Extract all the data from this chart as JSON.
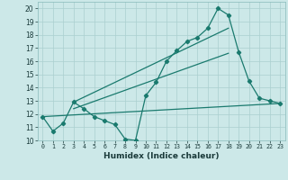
{
  "xlabel": "Humidex (Indice chaleur)",
  "ylabel": "",
  "bg_color": "#cce8e8",
  "grid_color": "#aacfcf",
  "line_color": "#1a7a6e",
  "xlim": [
    -0.5,
    23.5
  ],
  "ylim": [
    10,
    20.5
  ],
  "yticks": [
    10,
    11,
    12,
    13,
    14,
    15,
    16,
    17,
    18,
    19,
    20
  ],
  "xticks": [
    0,
    1,
    2,
    3,
    4,
    5,
    6,
    7,
    8,
    9,
    10,
    11,
    12,
    13,
    14,
    15,
    16,
    17,
    18,
    19,
    20,
    21,
    22,
    23
  ],
  "xtick_labels": [
    "0",
    "1",
    "2",
    "3",
    "4",
    "5",
    "6",
    "7",
    "8",
    "9",
    "10",
    "11",
    "12",
    "13",
    "14",
    "15",
    "16",
    "17",
    "18",
    "19",
    "20",
    "21",
    "22",
    "23"
  ],
  "line1_x": [
    0,
    1,
    2,
    3,
    4,
    5,
    6,
    7,
    8,
    9,
    10,
    11,
    12,
    13,
    14,
    15,
    16,
    17,
    18,
    19,
    20,
    21,
    22,
    23
  ],
  "line1_y": [
    11.8,
    10.7,
    11.3,
    12.9,
    12.4,
    11.8,
    11.5,
    11.2,
    10.1,
    10.0,
    13.4,
    14.4,
    16.0,
    16.8,
    17.5,
    17.8,
    18.5,
    20.0,
    19.5,
    16.7,
    14.5,
    13.2,
    13.0,
    12.8
  ],
  "line2_x": [
    0,
    23
  ],
  "line2_y": [
    11.8,
    12.8
  ],
  "line3_x": [
    3,
    18
  ],
  "line3_y": [
    12.9,
    18.5
  ],
  "line4_x": [
    3,
    18
  ],
  "line4_y": [
    12.4,
    16.6
  ]
}
